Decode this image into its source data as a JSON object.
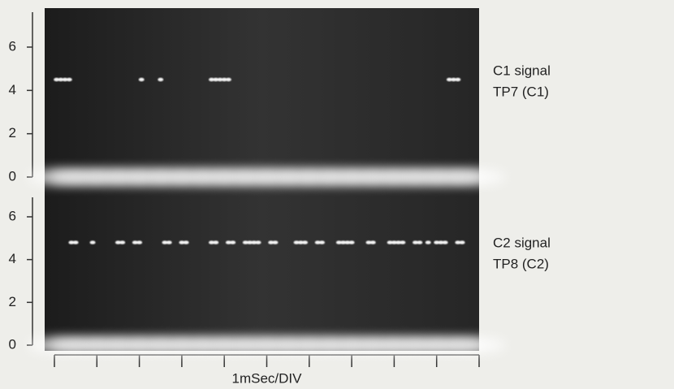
{
  "chart_data": [
    {
      "type": "scatter",
      "annotations": [
        "C1 signal",
        "TP7 (C1)"
      ],
      "x": [
        0,
        0.5,
        1,
        1.5,
        2,
        2.5,
        3,
        3.5,
        4,
        4.5,
        5,
        5.5,
        6,
        6.5,
        7,
        7.5,
        8,
        8.5,
        9,
        9.5,
        10,
        0.05,
        0.15,
        0.25,
        0.35,
        2.05,
        2.5,
        3.7,
        3.8,
        3.9,
        4.0,
        4.1,
        9.3,
        9.4,
        9.5
      ],
      "series": [
        {
          "color": "#ffffff",
          "values": [
            0,
            0,
            0,
            0,
            0,
            0,
            0,
            0,
            0,
            0,
            0,
            0,
            0,
            0,
            0,
            0,
            0,
            0,
            0,
            0,
            0,
            4.5,
            4.5,
            4.5,
            4.5,
            4.5,
            4.5,
            4.5,
            4.5,
            4.5,
            4.5,
            4.5,
            4.5,
            4.5,
            4.5
          ]
        }
      ],
      "xlim": [
        0,
        10
      ],
      "ylim": [
        0,
        7.8
      ],
      "yticks": [
        0,
        2,
        4,
        6
      ]
    },
    {
      "type": "scatter",
      "annotations": [
        "C2 signal",
        "TP8 (C2)"
      ],
      "x_label": "1mSec/DIV",
      "x": [
        0,
        0.5,
        1,
        1.5,
        2,
        2.5,
        3,
        3.5,
        4,
        4.5,
        5,
        5.5,
        6,
        6.5,
        7,
        7.5,
        8,
        8.5,
        9,
        9.5,
        10,
        0.4,
        0.5,
        0.9,
        1.5,
        1.6,
        1.9,
        2.0,
        2.6,
        2.7,
        3.0,
        3.1,
        3.7,
        3.8,
        4.1,
        4.2,
        4.5,
        4.6,
        4.7,
        4.8,
        5.1,
        5.2,
        5.7,
        5.8,
        5.9,
        6.2,
        6.3,
        6.7,
        6.8,
        6.9,
        7.0,
        7.4,
        7.5,
        7.9,
        8.0,
        8.1,
        8.2,
        8.5,
        8.6,
        8.8,
        9.0,
        9.1,
        9.2,
        9.5,
        9.6
      ],
      "series": [
        {
          "color": "#ffffff",
          "values": [
            0,
            0,
            0,
            0,
            0,
            0,
            0,
            0,
            0,
            0,
            0,
            0,
            0,
            0,
            0,
            0,
            0,
            0,
            0,
            0,
            0,
            4.8,
            4.8,
            4.8,
            4.8,
            4.8,
            4.8,
            4.8,
            4.8,
            4.8,
            4.8,
            4.8,
            4.8,
            4.8,
            4.8,
            4.8,
            4.8,
            4.8,
            4.8,
            4.8,
            4.8,
            4.8,
            4.8,
            4.8,
            4.8,
            4.8,
            4.8,
            4.8,
            4.8,
            4.8,
            4.8,
            4.8,
            4.8,
            4.8,
            4.8,
            4.8,
            4.8,
            4.8,
            4.8,
            4.8,
            4.8,
            4.8,
            4.8,
            4.8,
            4.8
          ]
        }
      ],
      "xlim": [
        0,
        10
      ],
      "xticks": [
        0,
        1,
        2,
        3,
        4,
        5,
        6,
        7,
        8,
        9,
        10
      ],
      "ylim": [
        0,
        7.1
      ],
      "yticks": [
        0,
        2,
        4,
        6
      ]
    }
  ]
}
